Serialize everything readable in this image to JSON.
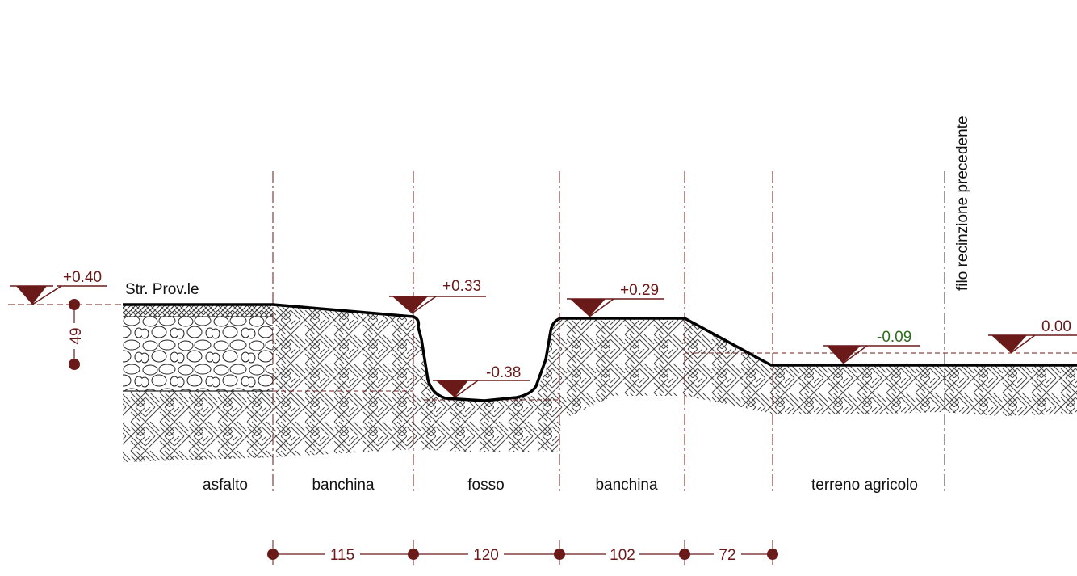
{
  "title": "",
  "road_label": "Str. Prov.le",
  "fence_label": "filo recinzione precedente",
  "zones": [
    {
      "label": "asfalto"
    },
    {
      "label": "banchina"
    },
    {
      "label": "fosso"
    },
    {
      "label": "banchina"
    },
    {
      "label": "terreno agricolo"
    }
  ],
  "elevations": [
    {
      "value": "+0.40",
      "color": "#6b1a1a"
    },
    {
      "value": "+0.33",
      "color": "#6b1a1a"
    },
    {
      "value": "-0.38",
      "color": "#6b1a1a"
    },
    {
      "value": "+0.29",
      "color": "#6b1a1a"
    },
    {
      "value": "-0.09",
      "color": "#2e6b1f"
    },
    {
      "value": "0.00",
      "color": "#6b1a1a"
    }
  ],
  "asphalt_thickness": "49",
  "dimensions": [
    "115",
    "120",
    "102",
    "72"
  ],
  "colors": {
    "dark_red": "#6b1a1a",
    "green": "#2e6b1f",
    "profile": "#000000",
    "hatch": "#333333"
  }
}
